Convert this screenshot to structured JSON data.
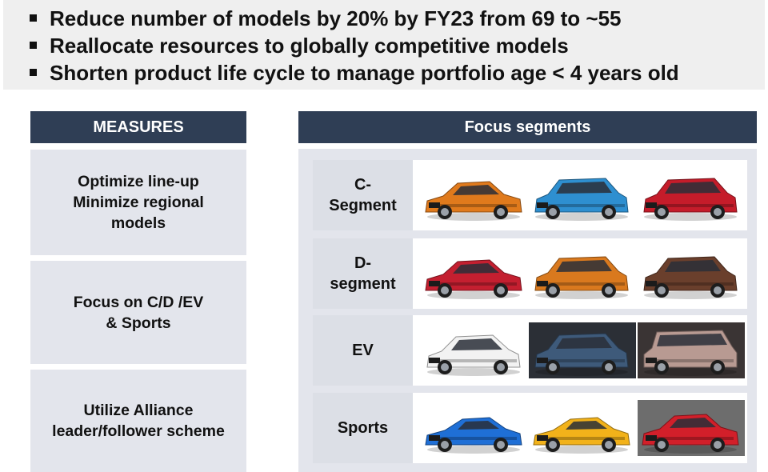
{
  "bullets": [
    "Reduce number of models by 20% by FY23 from 69 to ~55",
    "Reallocate resources to globally competitive models",
    "Shorten product life cycle to manage portfolio age < 4 years old"
  ],
  "measures": {
    "header": "MEASURES",
    "items": [
      [
        "Optimize line-up",
        "Minimize regional",
        "models"
      ],
      [
        "Focus on C/D /EV",
        "& Sports"
      ],
      [
        "Utilize Alliance",
        "leader/follower scheme"
      ]
    ]
  },
  "focus": {
    "header": "Focus segments",
    "segments": [
      {
        "label": [
          "C-",
          "Segment"
        ],
        "cars": [
          {
            "color": "#e07a1c",
            "type": "sedan",
            "bg": "#ffffff"
          },
          {
            "color": "#2e8fd0",
            "type": "suv",
            "bg": "#ffffff"
          },
          {
            "color": "#c51c2a",
            "type": "suv",
            "bg": "#ffffff"
          }
        ]
      },
      {
        "label": [
          "D-",
          "segment"
        ],
        "cars": [
          {
            "color": "#c41f30",
            "type": "sedan",
            "bg": "#ffffff"
          },
          {
            "color": "#d9791e",
            "type": "suv",
            "bg": "#ffffff"
          },
          {
            "color": "#6a3f2c",
            "type": "suv",
            "bg": "#ffffff"
          }
        ]
      },
      {
        "label": [
          "EV"
        ],
        "cars": [
          {
            "color": "#f2f2f2",
            "type": "hatch",
            "bg": "#ffffff"
          },
          {
            "color": "#3e5a7a",
            "type": "suv",
            "bg": "#2b2f36"
          },
          {
            "color": "#b89a92",
            "type": "van",
            "bg": "#3a3434"
          }
        ]
      },
      {
        "label": [
          "Sports"
        ],
        "cars": [
          {
            "color": "#1f6fd6",
            "type": "coupe",
            "bg": "#ffffff"
          },
          {
            "color": "#f2b21a",
            "type": "coupe",
            "bg": "#ffffff"
          },
          {
            "color": "#d21f2a",
            "type": "sedan",
            "bg": "#6d6d6d"
          }
        ]
      }
    ]
  }
}
